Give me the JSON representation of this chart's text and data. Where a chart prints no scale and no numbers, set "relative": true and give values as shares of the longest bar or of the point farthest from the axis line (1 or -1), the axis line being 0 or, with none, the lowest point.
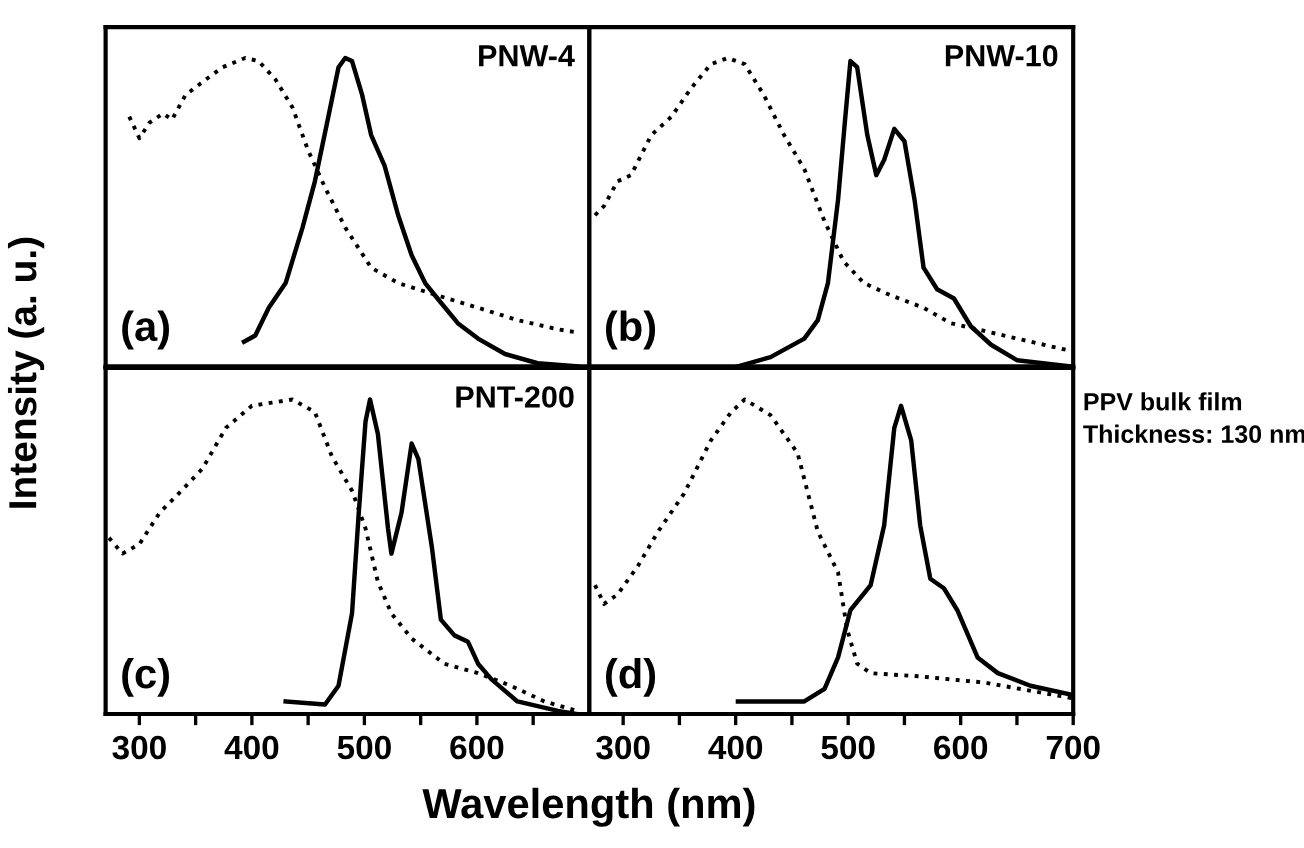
{
  "chart_data": [
    {
      "type": "line",
      "relative": true,
      "ylabel": "Intensity (a. u.)",
      "annotations": [
        "PNW-4",
        "(a)"
      ],
      "xlim": [
        270,
        700
      ],
      "xticks": [
        300,
        {
          "value": 350,
          "label": null
        },
        400,
        {
          "value": 450,
          "label": null
        },
        500,
        {
          "value": 550,
          "label": null
        },
        600,
        {
          "value": 650,
          "label": null
        }
      ],
      "tick_labels": false,
      "series": [
        {
          "color": "#000000",
          "line_style": "dotted",
          "x": [
            291,
            300,
            309,
            321,
            329,
            341,
            359,
            374,
            394,
            406,
            421,
            436,
            450,
            465,
            483,
            506,
            530,
            565,
            601,
            636,
            672,
            689
          ],
          "values": [
            0.81,
            0.74,
            0.79,
            0.82,
            0.8,
            0.88,
            0.93,
            0.97,
            1,
            0.99,
            0.93,
            0.84,
            0.7,
            0.58,
            0.45,
            0.32,
            0.27,
            0.23,
            0.19,
            0.15,
            0.12,
            0.11
          ]
        },
        {
          "color": "#000000",
          "line_style": "solid",
          "x": [
            393,
            403,
            415,
            430,
            445,
            456,
            468,
            477,
            483,
            489,
            498,
            506,
            518,
            530,
            542,
            554,
            565,
            583,
            601,
            625,
            654,
            689
          ],
          "values": [
            0.08,
            0.1,
            0.19,
            0.27,
            0.45,
            0.6,
            0.81,
            0.97,
            1,
            0.99,
            0.88,
            0.75,
            0.65,
            0.49,
            0.36,
            0.27,
            0.22,
            0.14,
            0.09,
            0.04,
            0.01,
            0
          ]
        }
      ]
    },
    {
      "type": "line",
      "relative": true,
      "annotations": [
        "PNW-10",
        "(b)"
      ],
      "xlim": [
        270,
        700
      ],
      "xticks": [
        300,
        {
          "value": 350,
          "label": null
        },
        400,
        {
          "value": 450,
          "label": null
        },
        500,
        {
          "value": 550,
          "label": null
        },
        600,
        {
          "value": 650,
          "label": null
        },
        700
      ],
      "tick_labels": false,
      "series": [
        {
          "color": "#000000",
          "line_style": "dotted",
          "x": [
            275,
            283,
            295,
            307,
            325,
            343,
            360,
            378,
            393,
            408,
            425,
            443,
            461,
            479,
            496,
            514,
            538,
            567,
            591,
            615,
            650,
            698
          ],
          "values": [
            0.49,
            0.52,
            0.6,
            0.62,
            0.75,
            0.81,
            0.9,
            0.98,
            1,
            0.98,
            0.88,
            0.75,
            0.64,
            0.47,
            0.34,
            0.27,
            0.23,
            0.19,
            0.14,
            0.12,
            0.09,
            0.05
          ]
        },
        {
          "color": "#000000",
          "line_style": "solid",
          "x": [
            402,
            431,
            461,
            473,
            482,
            491,
            497,
            502,
            508,
            517,
            525,
            532,
            541,
            550,
            559,
            567,
            579,
            594,
            609,
            627,
            650,
            698
          ],
          "values": [
            0,
            0.03,
            0.09,
            0.15,
            0.27,
            0.54,
            0.79,
            0.99,
            0.97,
            0.75,
            0.62,
            0.67,
            0.77,
            0.73,
            0.54,
            0.32,
            0.25,
            0.22,
            0.13,
            0.07,
            0.02,
            0
          ]
        }
      ]
    },
    {
      "type": "line",
      "relative": true,
      "xlabel": "Wavelength (nm)",
      "annotations": [
        "PNT-200",
        "(c)"
      ],
      "xlim": [
        270,
        700
      ],
      "xticks": [
        300,
        {
          "value": 350,
          "label": null
        },
        400,
        {
          "value": 450,
          "label": null
        },
        500,
        {
          "value": 550,
          "label": null
        },
        600,
        {
          "value": 650,
          "label": null
        }
      ],
      "tick_labels": "x",
      "series": [
        {
          "color": "#000000",
          "line_style": "dotted",
          "x": [
            273,
            285,
            300,
            318,
            332,
            356,
            377,
            400,
            418,
            436,
            456,
            471,
            489,
            501,
            512,
            524,
            542,
            571,
            601,
            630,
            660,
            689
          ],
          "values": [
            0.56,
            0.51,
            0.54,
            0.64,
            0.69,
            0.78,
            0.91,
            0.98,
            0.99,
            1,
            0.96,
            0.82,
            0.71,
            0.59,
            0.42,
            0.32,
            0.24,
            0.16,
            0.13,
            0.09,
            0.04,
            0.01
          ]
        },
        {
          "color": "#000000",
          "line_style": "solid",
          "x": [
            430,
            465,
            477,
            489,
            495,
            501,
            505,
            512,
            521,
            524,
            533,
            542,
            548,
            560,
            568,
            580,
            592,
            601,
            613,
            636,
            672,
            689
          ],
          "values": [
            0.04,
            0.03,
            0.09,
            0.32,
            0.64,
            0.93,
            1,
            0.89,
            0.59,
            0.51,
            0.64,
            0.86,
            0.81,
            0.53,
            0.3,
            0.25,
            0.23,
            0.16,
            0.11,
            0.04,
            0.01,
            0
          ]
        }
      ]
    },
    {
      "type": "line",
      "relative": true,
      "annotations": [
        "PPV bulk film\nThickness: 130 nm",
        "(d)"
      ],
      "xlim": [
        270,
        700
      ],
      "xticks": [
        300,
        {
          "value": 350,
          "label": null
        },
        400,
        {
          "value": 450,
          "label": null
        },
        500,
        {
          "value": 550,
          "label": null
        },
        600,
        {
          "value": 650,
          "label": null
        },
        700
      ],
      "tick_labels": "x",
      "series": [
        {
          "color": "#000000",
          "line_style": "dotted",
          "x": [
            275,
            283,
            295,
            313,
            331,
            354,
            378,
            396,
            408,
            431,
            455,
            473,
            491,
            499,
            508,
            520,
            562,
            621,
            700
          ],
          "values": [
            0.41,
            0.35,
            0.38,
            0.47,
            0.58,
            0.7,
            0.87,
            0.96,
            1,
            0.95,
            0.83,
            0.58,
            0.45,
            0.27,
            0.16,
            0.13,
            0.12,
            0.1,
            0.05
          ]
        },
        {
          "color": "#000000",
          "line_style": "solid",
          "x": [
            402,
            461,
            479,
            491,
            502,
            520,
            532,
            541,
            547,
            556,
            564,
            573,
            585,
            597,
            615,
            633,
            662,
            700
          ],
          "values": [
            0.04,
            0.04,
            0.08,
            0.18,
            0.33,
            0.41,
            0.6,
            0.91,
            0.98,
            0.87,
            0.6,
            0.43,
            0.4,
            0.33,
            0.18,
            0.13,
            0.09,
            0.06
          ]
        }
      ]
    }
  ]
}
